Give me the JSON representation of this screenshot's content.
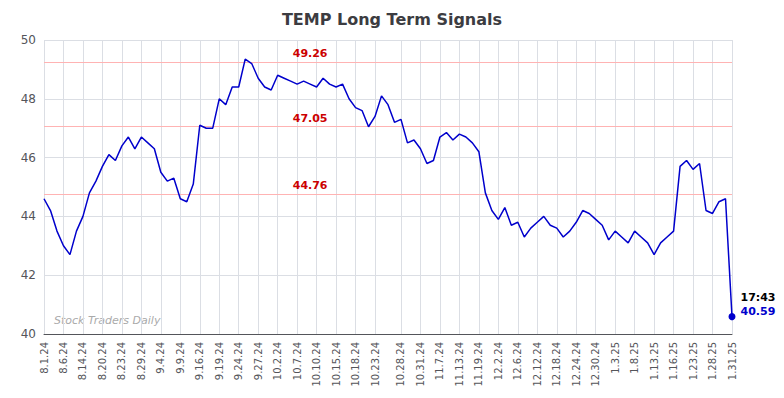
{
  "chart_data": {
    "type": "line",
    "title": "TEMP Long Term Signals",
    "watermark": "Stock Traders Daily",
    "color": "#0000cc",
    "grid": true,
    "ylim": [
      40,
      50
    ],
    "yticks": [
      40,
      42,
      44,
      46,
      48,
      50
    ],
    "reference_lines": {
      "color": "#ffb3b3",
      "label_color": "#cc0000",
      "lines": [
        {
          "value": 49.26,
          "label": "49.26"
        },
        {
          "value": 47.05,
          "label": "47.05"
        },
        {
          "value": 44.76,
          "label": "44.76"
        }
      ]
    },
    "last_point": {
      "time": "17:43",
      "time_color": "#000000",
      "value": 40.59,
      "label": "40.59"
    },
    "categories": [
      "8.1.24",
      null,
      null,
      "8.6.24",
      null,
      null,
      "8.14.24",
      null,
      null,
      "8.20.24",
      null,
      null,
      "8.23.24",
      null,
      null,
      "8.29.24",
      null,
      null,
      "9.4.24",
      null,
      null,
      "9.9.24",
      null,
      null,
      "9.16.24",
      null,
      null,
      "9.19.24",
      null,
      null,
      "9.24.24",
      null,
      null,
      "9.27.24",
      null,
      null,
      "10.2.24",
      null,
      null,
      "10.7.24",
      null,
      null,
      "10.10.24",
      null,
      null,
      "10.15.24",
      null,
      null,
      "10.18.24",
      null,
      null,
      "10.23.24",
      null,
      null,
      null,
      "10.28.24",
      null,
      null,
      "10.31.24",
      null,
      null,
      "11.7.24",
      null,
      null,
      "11.13.24",
      null,
      null,
      "11.19.24",
      null,
      null,
      "12.2.24",
      null,
      null,
      "12.6.24",
      null,
      null,
      "12.12.24",
      null,
      null,
      "12.18.24",
      null,
      null,
      "12.24.24",
      null,
      null,
      "12.30.24",
      null,
      null,
      "1.3.25",
      null,
      null,
      "1.8.25",
      null,
      null,
      "1.13.25",
      null,
      null,
      "1.16.25",
      null,
      null,
      "1.23.25",
      null,
      null,
      "1.28.25",
      null,
      null,
      "1.31.25"
    ],
    "values": [
      44.6,
      44.2,
      43.5,
      43.0,
      42.7,
      43.5,
      44.0,
      44.8,
      45.2,
      45.7,
      46.1,
      45.9,
      46.4,
      46.7,
      46.3,
      46.7,
      46.5,
      46.3,
      45.5,
      45.2,
      45.3,
      44.6,
      44.5,
      45.1,
      47.1,
      47.0,
      47.0,
      48.0,
      47.8,
      48.4,
      48.4,
      49.35,
      49.2,
      48.7,
      48.4,
      48.3,
      48.8,
      48.7,
      48.6,
      48.5,
      48.6,
      48.5,
      48.4,
      48.7,
      48.5,
      48.4,
      48.5,
      48.0,
      47.7,
      47.6,
      47.05,
      47.4,
      48.1,
      47.8,
      47.2,
      47.3,
      46.5,
      46.6,
      46.3,
      45.8,
      45.9,
      46.7,
      46.85,
      46.6,
      46.8,
      46.7,
      46.5,
      46.2,
      44.8,
      44.2,
      43.9,
      44.3,
      43.7,
      43.8,
      43.3,
      43.6,
      43.8,
      44.0,
      43.7,
      43.6,
      43.3,
      43.5,
      43.8,
      44.2,
      44.1,
      43.9,
      43.7,
      43.2,
      43.5,
      43.3,
      43.1,
      43.5,
      43.3,
      43.1,
      42.7,
      43.1,
      43.3,
      43.5,
      45.7,
      45.9,
      45.6,
      45.8,
      44.2,
      44.1,
      44.5,
      44.6,
      40.59
    ]
  }
}
